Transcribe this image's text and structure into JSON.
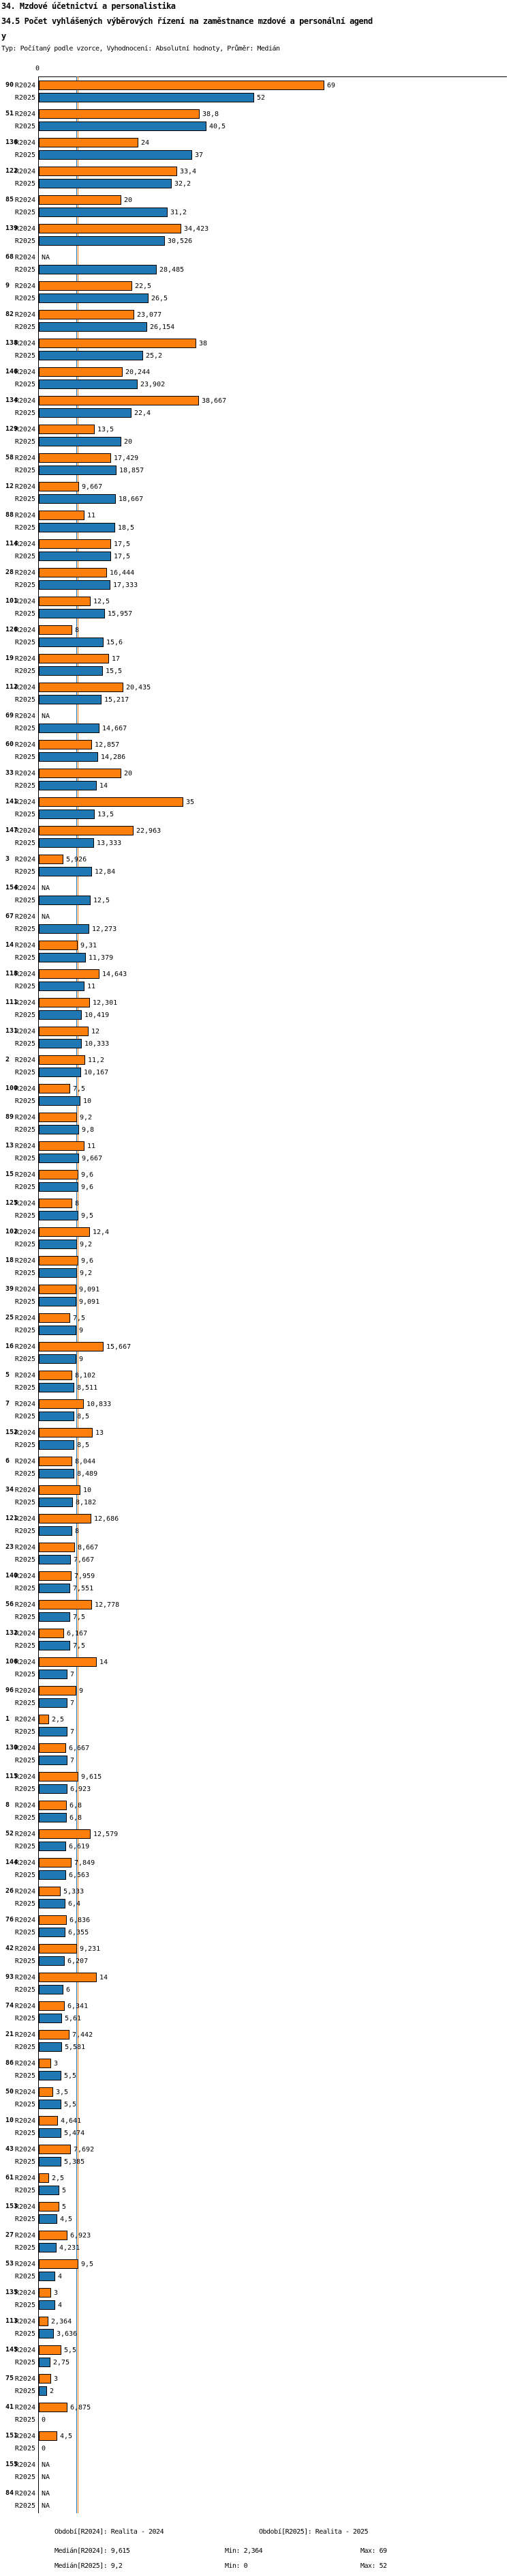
{
  "header": {
    "title1": "34. Mzdové účetnictví a personalistika",
    "title2": "34.5 Počet vyhlášených výběrových řízení na zaměstnance mzdové a personální agend",
    "title2b": "y",
    "meta": "Typ: Počítaný podle vzorce, Vyhodnocení: Absolutní hodnoty, Průměr: Medián"
  },
  "chart_data": {
    "type": "bar",
    "orientation": "horizontal",
    "series_labels": [
      "R2024",
      "R2025"
    ],
    "colors": {
      "R2024": "#ff7f0e",
      "R2025": "#1f77b4"
    },
    "axis": {
      "tick0": "0"
    },
    "medians": {
      "R2024": 9.615,
      "R2025": 9.2
    },
    "legend_position": "none",
    "grid": false,
    "groups": [
      {
        "label": "90",
        "R2024": "69",
        "R2025": "52"
      },
      {
        "label": "51",
        "R2024": "38,8",
        "R2025": "40,5"
      },
      {
        "label": "136",
        "R2024": "24",
        "R2025": "37"
      },
      {
        "label": "122",
        "R2024": "33,4",
        "R2025": "32,2"
      },
      {
        "label": "85",
        "R2024": "20",
        "R2025": "31,2"
      },
      {
        "label": "139",
        "R2024": "34,423",
        "R2025": "30,526"
      },
      {
        "label": "68",
        "R2024": "NA",
        "R2025": "28,485"
      },
      {
        "label": "9",
        "R2024": "22,5",
        "R2025": "26,5"
      },
      {
        "label": "82",
        "R2024": "23,077",
        "R2025": "26,154"
      },
      {
        "label": "138",
        "R2024": "38",
        "R2025": "25,2"
      },
      {
        "label": "146",
        "R2024": "20,244",
        "R2025": "23,902"
      },
      {
        "label": "134",
        "R2024": "38,667",
        "R2025": "22,4"
      },
      {
        "label": "129",
        "R2024": "13,5",
        "R2025": "20"
      },
      {
        "label": "58",
        "R2024": "17,429",
        "R2025": "18,857"
      },
      {
        "label": "12",
        "R2024": "9,667",
        "R2025": "18,667"
      },
      {
        "label": "88",
        "R2024": "11",
        "R2025": "18,5"
      },
      {
        "label": "114",
        "R2024": "17,5",
        "R2025": "17,5"
      },
      {
        "label": "28",
        "R2024": "16,444",
        "R2025": "17,333"
      },
      {
        "label": "101",
        "R2024": "12,5",
        "R2025": "15,957"
      },
      {
        "label": "126",
        "R2024": "8",
        "R2025": "15,6"
      },
      {
        "label": "19",
        "R2024": "17",
        "R2025": "15,5"
      },
      {
        "label": "112",
        "R2024": "20,435",
        "R2025": "15,217"
      },
      {
        "label": "69",
        "R2024": "NA",
        "R2025": "14,667"
      },
      {
        "label": "60",
        "R2024": "12,857",
        "R2025": "14,286"
      },
      {
        "label": "33",
        "R2024": "20",
        "R2025": "14"
      },
      {
        "label": "141",
        "R2024": "35",
        "R2025": "13,5"
      },
      {
        "label": "147",
        "R2024": "22,963",
        "R2025": "13,333"
      },
      {
        "label": "3",
        "R2024": "5,926",
        "R2025": "12,84"
      },
      {
        "label": "154",
        "R2024": "NA",
        "R2025": "12,5"
      },
      {
        "label": "67",
        "R2024": "NA",
        "R2025": "12,273"
      },
      {
        "label": "14",
        "R2024": "9,31",
        "R2025": "11,379"
      },
      {
        "label": "118",
        "R2024": "14,643",
        "R2025": "11"
      },
      {
        "label": "111",
        "R2024": "12,301",
        "R2025": "10,419"
      },
      {
        "label": "131",
        "R2024": "12",
        "R2025": "10,333"
      },
      {
        "label": "2",
        "R2024": "11,2",
        "R2025": "10,167"
      },
      {
        "label": "100",
        "R2024": "7,5",
        "R2025": "10"
      },
      {
        "label": "89",
        "R2024": "9,2",
        "R2025": "9,8"
      },
      {
        "label": "13",
        "R2024": "11",
        "R2025": "9,667"
      },
      {
        "label": "15",
        "R2024": "9,6",
        "R2025": "9,6"
      },
      {
        "label": "125",
        "R2024": "8",
        "R2025": "9,5"
      },
      {
        "label": "102",
        "R2024": "12,4",
        "R2025": "9,2"
      },
      {
        "label": "18",
        "R2024": "9,6",
        "R2025": "9,2"
      },
      {
        "label": "39",
        "R2024": "9,091",
        "R2025": "9,091"
      },
      {
        "label": "25",
        "R2024": "7,5",
        "R2025": "9"
      },
      {
        "label": "16",
        "R2024": "15,667",
        "R2025": "9"
      },
      {
        "label": "5",
        "R2024": "8,102",
        "R2025": "8,511"
      },
      {
        "label": "7",
        "R2024": "10,833",
        "R2025": "8,5"
      },
      {
        "label": "152",
        "R2024": "13",
        "R2025": "8,5"
      },
      {
        "label": "6",
        "R2024": "8,044",
        "R2025": "8,489"
      },
      {
        "label": "34",
        "R2024": "10",
        "R2025": "8,182"
      },
      {
        "label": "121",
        "R2024": "12,686",
        "R2025": "8"
      },
      {
        "label": "23",
        "R2024": "8,667",
        "R2025": "7,667"
      },
      {
        "label": "140",
        "R2024": "7,959",
        "R2025": "7,551"
      },
      {
        "label": "56",
        "R2024": "12,778",
        "R2025": "7,5"
      },
      {
        "label": "132",
        "R2024": "6,167",
        "R2025": "7,5"
      },
      {
        "label": "106",
        "R2024": "14",
        "R2025": "7"
      },
      {
        "label": "96",
        "R2024": "9",
        "R2025": "7"
      },
      {
        "label": "1",
        "R2024": "2,5",
        "R2025": "7"
      },
      {
        "label": "130",
        "R2024": "6,667",
        "R2025": "7"
      },
      {
        "label": "115",
        "R2024": "9,615",
        "R2025": "6,923"
      },
      {
        "label": "8",
        "R2024": "6,8",
        "R2025": "6,8"
      },
      {
        "label": "52",
        "R2024": "12,579",
        "R2025": "6,619"
      },
      {
        "label": "144",
        "R2024": "7,849",
        "R2025": "6,563"
      },
      {
        "label": "26",
        "R2024": "5,333",
        "R2025": "6,4"
      },
      {
        "label": "76",
        "R2024": "6,836",
        "R2025": "6,355"
      },
      {
        "label": "42",
        "R2024": "9,231",
        "R2025": "6,207"
      },
      {
        "label": "93",
        "R2024": "14",
        "R2025": "6"
      },
      {
        "label": "74",
        "R2024": "6,341",
        "R2025": "5,61"
      },
      {
        "label": "21",
        "R2024": "7,442",
        "R2025": "5,581"
      },
      {
        "label": "86",
        "R2024": "3",
        "R2025": "5,5"
      },
      {
        "label": "50",
        "R2024": "3,5",
        "R2025": "5,5"
      },
      {
        "label": "10",
        "R2024": "4,641",
        "R2025": "5,474"
      },
      {
        "label": "43",
        "R2024": "7,692",
        "R2025": "5,385"
      },
      {
        "label": "61",
        "R2024": "2,5",
        "R2025": "5"
      },
      {
        "label": "153",
        "R2024": "5",
        "R2025": "4,5"
      },
      {
        "label": "27",
        "R2024": "6,923",
        "R2025": "4,231"
      },
      {
        "label": "53",
        "R2024": "9,5",
        "R2025": "4"
      },
      {
        "label": "135",
        "R2024": "3",
        "R2025": "4"
      },
      {
        "label": "113",
        "R2024": "2,364",
        "R2025": "3,636"
      },
      {
        "label": "145",
        "R2024": "5,5",
        "R2025": "2,75"
      },
      {
        "label": "75",
        "R2024": "3",
        "R2025": "2"
      },
      {
        "label": "41",
        "R2024": "6,875",
        "R2025": "0"
      },
      {
        "label": "151",
        "R2024": "4,5",
        "R2025": "0"
      },
      {
        "label": "155",
        "R2024": "NA",
        "R2025": "NA"
      },
      {
        "label": "84",
        "R2024": "NA",
        "R2025": "NA"
      }
    ]
  },
  "footer": {
    "obdobi_r2024": "Období[R2024]: Realita - 2024",
    "obdobi_r2025": "Období[R2025]: Realita - 2025",
    "median_r2024": "Medián[R2024]: 9,615",
    "min_r2024": "Min: 2,364",
    "max_r2024": "Max: 69",
    "median_r2025": "Medián[R2025]: 9,2",
    "min_r2025": "Min: 0",
    "max_r2025": "Max: 52"
  }
}
